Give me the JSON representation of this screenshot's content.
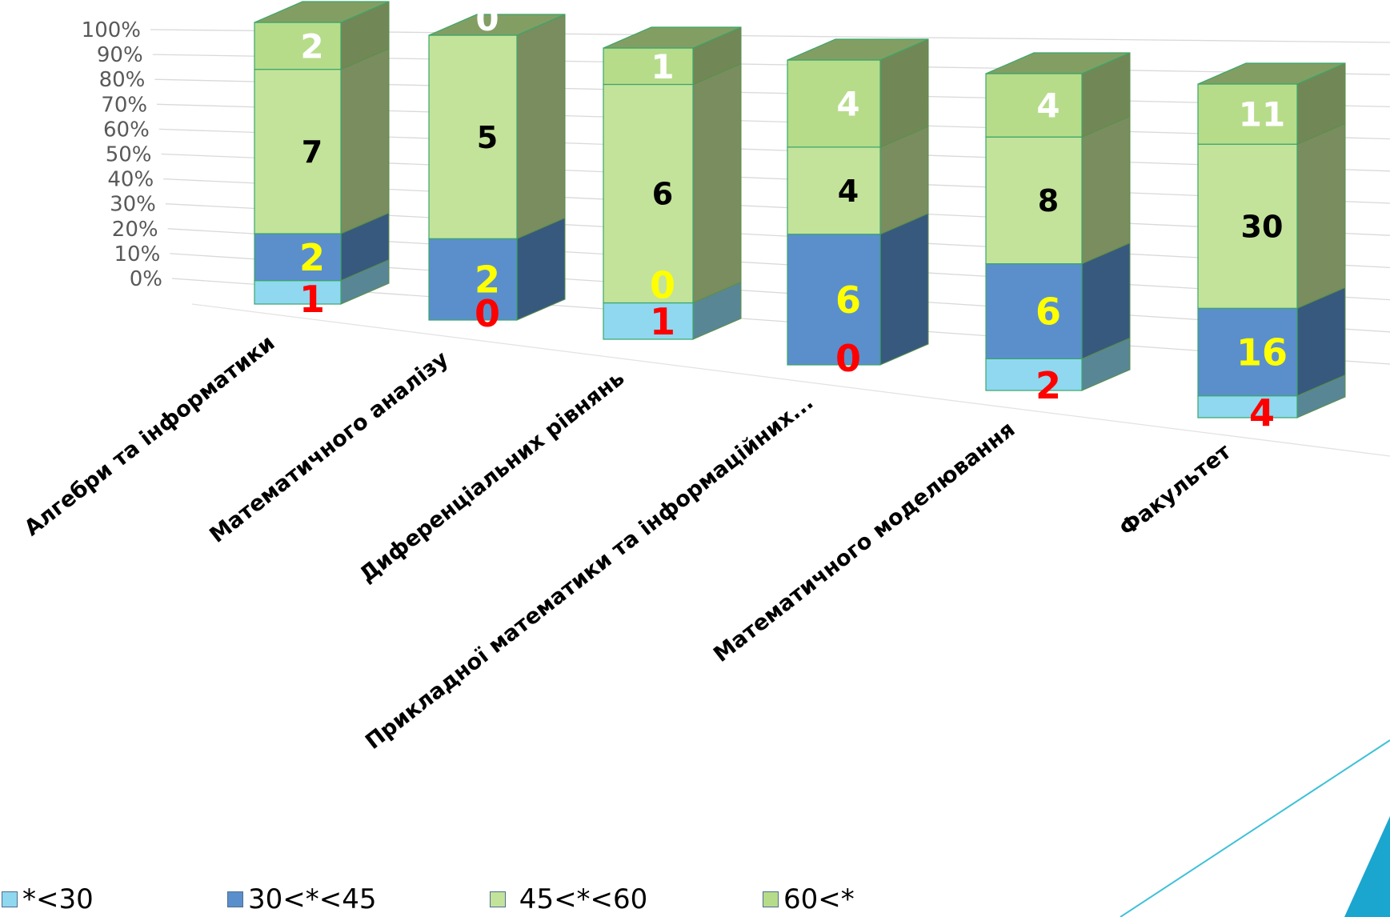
{
  "chart_data": {
    "type": "bar",
    "stacked": true,
    "percent": true,
    "view": "3d",
    "categories": [
      "Алгебри та інформатики",
      "Математичного аналізу",
      "Диференціальних рівнянь",
      "Прикладної математики та інформаційних...",
      "Математичного моделювання",
      "Факультет"
    ],
    "series": [
      {
        "name": "*<30",
        "values": [
          1,
          0,
          1,
          0,
          2,
          4
        ],
        "color": "#8fd8f0",
        "label_color": "#ff0000"
      },
      {
        "name": "30<*<45",
        "values": [
          2,
          2,
          0,
          6,
          6,
          16
        ],
        "color": "#5b8fcc",
        "label_color": "#ffff00"
      },
      {
        "name": "45<*<60",
        "values": [
          7,
          5,
          6,
          4,
          8,
          30
        ],
        "color": "#c3e39a",
        "label_color": "#000000"
      },
      {
        "name": "60<*",
        "values": [
          2,
          0,
          1,
          4,
          4,
          11
        ],
        "color": "#b6dc8a",
        "label_color": "#ffffff"
      }
    ],
    "yaxis": {
      "ticks": [
        "0%",
        "10%",
        "20%",
        "30%",
        "40%",
        "50%",
        "60%",
        "70%",
        "80%",
        "90%",
        "100%"
      ],
      "min": 0,
      "max": 100
    },
    "grid": true,
    "legend_position": "bottom"
  },
  "legend": {
    "items": [
      {
        "label": "*<30",
        "color": "#8fd8f0"
      },
      {
        "label": "30<*<45",
        "color": "#5b8fcc"
      },
      {
        "label": " 45<*<60",
        "color": "#c3e39a"
      },
      {
        "label": "60<*",
        "color": "#b6dc8a"
      }
    ]
  }
}
